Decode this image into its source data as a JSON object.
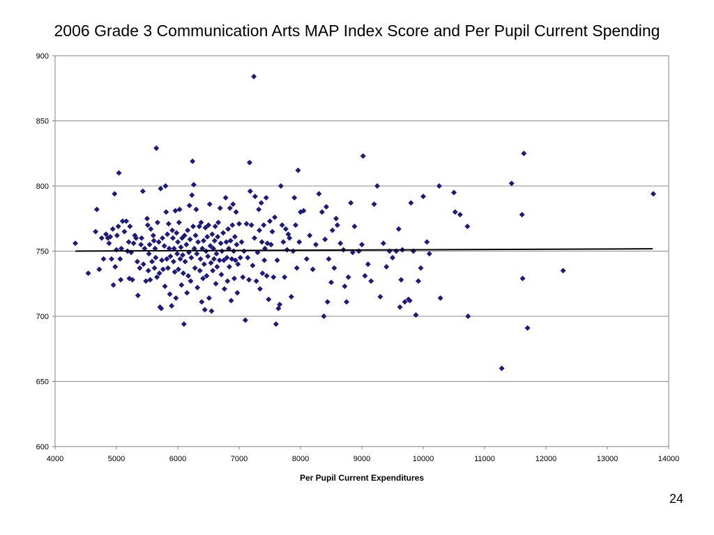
{
  "slide": {
    "title": "2006 Grade 3 Communication Arts MAP Index Score and Per Pupil Current Spending",
    "page_number": "24"
  },
  "chart_data": {
    "type": "scatter",
    "title": "",
    "xlabel": "Per Pupil Current Expenditures",
    "ylabel": "",
    "xlim": [
      4000,
      14000
    ],
    "ylim": [
      600,
      900
    ],
    "xticks": [
      4000,
      5000,
      6000,
      7000,
      8000,
      9000,
      10000,
      11000,
      12000,
      13000,
      14000
    ],
    "yticks": [
      600,
      650,
      700,
      750,
      800,
      850,
      900
    ],
    "grid": "horizontal",
    "legend": "none",
    "marker": "diamond",
    "colors": {
      "points": "#1a1a80",
      "trend": "#000000",
      "grid": "#8c8c8c"
    },
    "trendline": {
      "x": [
        4330,
        13740
      ],
      "y": [
        750,
        751.8
      ]
    },
    "points": [
      [
        4330,
        756
      ],
      [
        4540,
        733
      ],
      [
        4660,
        765
      ],
      [
        4680,
        782
      ],
      [
        4720,
        736
      ],
      [
        4760,
        760
      ],
      [
        4790,
        744
      ],
      [
        4830,
        763
      ],
      [
        4860,
        760
      ],
      [
        4880,
        756
      ],
      [
        4900,
        761
      ],
      [
        4920,
        744
      ],
      [
        4940,
        767
      ],
      [
        4950,
        724
      ],
      [
        4970,
        794
      ],
      [
        4980,
        738
      ],
      [
        5000,
        751
      ],
      [
        5010,
        762
      ],
      [
        5030,
        769
      ],
      [
        5040,
        810
      ],
      [
        5060,
        744
      ],
      [
        5070,
        728
      ],
      [
        5080,
        752
      ],
      [
        5100,
        773
      ],
      [
        5130,
        765
      ],
      [
        5160,
        773
      ],
      [
        5180,
        750
      ],
      [
        5200,
        757
      ],
      [
        5210,
        729
      ],
      [
        5220,
        769
      ],
      [
        5240,
        749
      ],
      [
        5260,
        728
      ],
      [
        5280,
        756
      ],
      [
        5300,
        762
      ],
      [
        5320,
        760
      ],
      [
        5340,
        742
      ],
      [
        5350,
        716
      ],
      [
        5380,
        737
      ],
      [
        5400,
        755
      ],
      [
        5410,
        760
      ],
      [
        5430,
        796
      ],
      [
        5440,
        740
      ],
      [
        5460,
        752
      ],
      [
        5480,
        727
      ],
      [
        5500,
        775
      ],
      [
        5510,
        770
      ],
      [
        5520,
        735
      ],
      [
        5530,
        748
      ],
      [
        5540,
        755
      ],
      [
        5550,
        728
      ],
      [
        5560,
        767
      ],
      [
        5580,
        742
      ],
      [
        5600,
        762
      ],
      [
        5610,
        758
      ],
      [
        5620,
        737
      ],
      [
        5630,
        752
      ],
      [
        5640,
        745
      ],
      [
        5650,
        829
      ],
      [
        5660,
        730
      ],
      [
        5670,
        772
      ],
      [
        5690,
        757
      ],
      [
        5700,
        733
      ],
      [
        5710,
        707
      ],
      [
        5720,
        798
      ],
      [
        5730,
        706
      ],
      [
        5740,
        743
      ],
      [
        5750,
        760
      ],
      [
        5760,
        736
      ],
      [
        5780,
        754
      ],
      [
        5790,
        723
      ],
      [
        5800,
        800
      ],
      [
        5810,
        780
      ],
      [
        5820,
        744
      ],
      [
        5830,
        763
      ],
      [
        5840,
        737
      ],
      [
        5850,
        771
      ],
      [
        5860,
        752
      ],
      [
        5870,
        717
      ],
      [
        5880,
        746
      ],
      [
        5900,
        708
      ],
      [
        5910,
        766
      ],
      [
        5920,
        760
      ],
      [
        5930,
        742
      ],
      [
        5940,
        752
      ],
      [
        5950,
        734
      ],
      [
        5960,
        781
      ],
      [
        5970,
        714
      ],
      [
        5980,
        764
      ],
      [
        5990,
        748
      ],
      [
        6000,
        757
      ],
      [
        6010,
        736
      ],
      [
        6020,
        772
      ],
      [
        6030,
        782
      ],
      [
        6040,
        744
      ],
      [
        6050,
        753
      ],
      [
        6060,
        724
      ],
      [
        6070,
        760
      ],
      [
        6080,
        747
      ],
      [
        6090,
        733
      ],
      [
        6100,
        694
      ],
      [
        6110,
        762
      ],
      [
        6120,
        742
      ],
      [
        6140,
        755
      ],
      [
        6150,
        718
      ],
      [
        6160,
        766
      ],
      [
        6170,
        731
      ],
      [
        6180,
        749
      ],
      [
        6190,
        785
      ],
      [
        6200,
        759
      ],
      [
        6210,
        727
      ],
      [
        6220,
        745
      ],
      [
        6230,
        793
      ],
      [
        6240,
        819
      ],
      [
        6250,
        769
      ],
      [
        6260,
        801
      ],
      [
        6270,
        752
      ],
      [
        6280,
        737
      ],
      [
        6290,
        762
      ],
      [
        6300,
        782
      ],
      [
        6310,
        748
      ],
      [
        6320,
        722
      ],
      [
        6330,
        757
      ],
      [
        6350,
        769
      ],
      [
        6360,
        735
      ],
      [
        6370,
        744
      ],
      [
        6380,
        772
      ],
      [
        6390,
        711
      ],
      [
        6400,
        752
      ],
      [
        6410,
        729
      ],
      [
        6420,
        758
      ],
      [
        6430,
        740
      ],
      [
        6440,
        705
      ],
      [
        6450,
        768
      ],
      [
        6460,
        750
      ],
      [
        6470,
        731
      ],
      [
        6480,
        761
      ],
      [
        6490,
        746
      ],
      [
        6500,
        770
      ],
      [
        6510,
        714
      ],
      [
        6520,
        786
      ],
      [
        6530,
        754
      ],
      [
        6540,
        741
      ],
      [
        6550,
        704
      ],
      [
        6560,
        763
      ],
      [
        6570,
        735
      ],
      [
        6580,
        752
      ],
      [
        6590,
        744
      ],
      [
        6600,
        758
      ],
      [
        6610,
        769
      ],
      [
        6620,
        725
      ],
      [
        6630,
        748
      ],
      [
        6640,
        738
      ],
      [
        6650,
        761
      ],
      [
        6660,
        772
      ],
      [
        6680,
        743
      ],
      [
        6690,
        783
      ],
      [
        6700,
        756
      ],
      [
        6710,
        732
      ],
      [
        6720,
        750
      ],
      [
        6740,
        764
      ],
      [
        6750,
        743
      ],
      [
        6760,
        721
      ],
      [
        6780,
        791
      ],
      [
        6790,
        757
      ],
      [
        6800,
        745
      ],
      [
        6810,
        727
      ],
      [
        6820,
        767
      ],
      [
        6830,
        752
      ],
      [
        6840,
        738
      ],
      [
        6850,
        783
      ],
      [
        6860,
        758
      ],
      [
        6870,
        712
      ],
      [
        6880,
        744
      ],
      [
        6890,
        770
      ],
      [
        6900,
        786
      ],
      [
        6910,
        750
      ],
      [
        6920,
        729
      ],
      [
        6930,
        761
      ],
      [
        6940,
        743
      ],
      [
        6950,
        780
      ],
      [
        6960,
        755
      ],
      [
        6970,
        718
      ],
      [
        6980,
        740
      ],
      [
        7000,
        771
      ],
      [
        7020,
        745
      ],
      [
        7040,
        757
      ],
      [
        7060,
        730
      ],
      [
        7080,
        750
      ],
      [
        7100,
        697
      ],
      [
        7120,
        771
      ],
      [
        7140,
        745
      ],
      [
        7160,
        728
      ],
      [
        7170,
        818
      ],
      [
        7180,
        796
      ],
      [
        7200,
        770
      ],
      [
        7220,
        739
      ],
      [
        7240,
        884
      ],
      [
        7250,
        760
      ],
      [
        7260,
        792
      ],
      [
        7280,
        727
      ],
      [
        7300,
        749
      ],
      [
        7320,
        782
      ],
      [
        7330,
        766
      ],
      [
        7340,
        721
      ],
      [
        7360,
        787
      ],
      [
        7370,
        757
      ],
      [
        7380,
        733
      ],
      [
        7400,
        770
      ],
      [
        7410,
        743
      ],
      [
        7420,
        752
      ],
      [
        7440,
        791
      ],
      [
        7450,
        731
      ],
      [
        7460,
        756
      ],
      [
        7480,
        713
      ],
      [
        7500,
        773
      ],
      [
        7520,
        755
      ],
      [
        7540,
        765
      ],
      [
        7560,
        730
      ],
      [
        7580,
        776
      ],
      [
        7600,
        694
      ],
      [
        7620,
        743
      ],
      [
        7640,
        706
      ],
      [
        7660,
        709
      ],
      [
        7680,
        800
      ],
      [
        7700,
        770
      ],
      [
        7720,
        757
      ],
      [
        7740,
        730
      ],
      [
        7760,
        767
      ],
      [
        7780,
        751
      ],
      [
        7800,
        763
      ],
      [
        7820,
        760
      ],
      [
        7850,
        715
      ],
      [
        7880,
        750
      ],
      [
        7900,
        791
      ],
      [
        7920,
        770
      ],
      [
        7940,
        737
      ],
      [
        7960,
        812
      ],
      [
        7980,
        757
      ],
      [
        8000,
        780
      ],
      [
        8050,
        781
      ],
      [
        8100,
        744
      ],
      [
        8150,
        762
      ],
      [
        8200,
        736
      ],
      [
        8250,
        755
      ],
      [
        8300,
        794
      ],
      [
        8350,
        780
      ],
      [
        8380,
        700
      ],
      [
        8400,
        759
      ],
      [
        8420,
        784
      ],
      [
        8440,
        711
      ],
      [
        8460,
        744
      ],
      [
        8500,
        726
      ],
      [
        8520,
        766
      ],
      [
        8550,
        737
      ],
      [
        8580,
        775
      ],
      [
        8600,
        770
      ],
      [
        8650,
        756
      ],
      [
        8700,
        751
      ],
      [
        8720,
        723
      ],
      [
        8750,
        711
      ],
      [
        8780,
        730
      ],
      [
        8820,
        787
      ],
      [
        8850,
        749
      ],
      [
        8880,
        769
      ],
      [
        8950,
        750
      ],
      [
        9000,
        755
      ],
      [
        9020,
        823
      ],
      [
        9050,
        731
      ],
      [
        9100,
        740
      ],
      [
        9150,
        727
      ],
      [
        9200,
        786
      ],
      [
        9250,
        800
      ],
      [
        9300,
        715
      ],
      [
        9350,
        756
      ],
      [
        9400,
        738
      ],
      [
        9450,
        750
      ],
      [
        9500,
        745
      ],
      [
        9560,
        750
      ],
      [
        9600,
        767
      ],
      [
        9620,
        707
      ],
      [
        9640,
        728
      ],
      [
        9660,
        751
      ],
      [
        9700,
        711
      ],
      [
        9760,
        713
      ],
      [
        9780,
        712
      ],
      [
        9800,
        787
      ],
      [
        9840,
        750
      ],
      [
        9880,
        701
      ],
      [
        9920,
        727
      ],
      [
        9960,
        737
      ],
      [
        10000,
        792
      ],
      [
        10060,
        757
      ],
      [
        10100,
        748
      ],
      [
        10260,
        800
      ],
      [
        10280,
        714
      ],
      [
        10500,
        795
      ],
      [
        10520,
        780
      ],
      [
        10600,
        778
      ],
      [
        10720,
        769
      ],
      [
        10730,
        700
      ],
      [
        11280,
        660
      ],
      [
        11440,
        802
      ],
      [
        11610,
        778
      ],
      [
        11620,
        729
      ],
      [
        11640,
        825
      ],
      [
        11700,
        691
      ],
      [
        12280,
        735
      ],
      [
        13750,
        794
      ]
    ]
  }
}
